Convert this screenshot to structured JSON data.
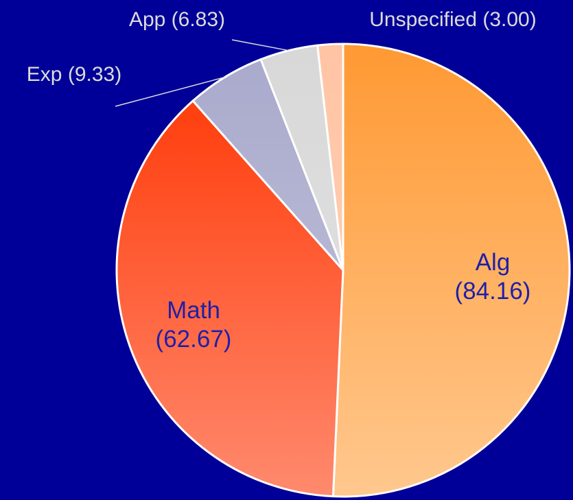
{
  "chart_data": {
    "type": "pie",
    "categories": [
      "Alg",
      "Math",
      "Exp",
      "App",
      "Unspecified"
    ],
    "values": [
      84.16,
      62.67,
      9.33,
      6.83,
      3.0
    ],
    "value_labels": [
      "(84.16)",
      "(62.67)",
      "(9.33)",
      "(6.83)",
      "(3.00)"
    ],
    "colors": [
      [
        "#ff9933",
        "#ffc88e"
      ],
      [
        "#ff3300",
        "#ff8a6e"
      ],
      [
        "#a9a9cc",
        "#c4c4dc"
      ],
      [
        "#d8d8d8",
        "#e4e4e4"
      ],
      [
        "#ffc4a4",
        "#ffd4bc"
      ]
    ],
    "background": "#000099"
  }
}
